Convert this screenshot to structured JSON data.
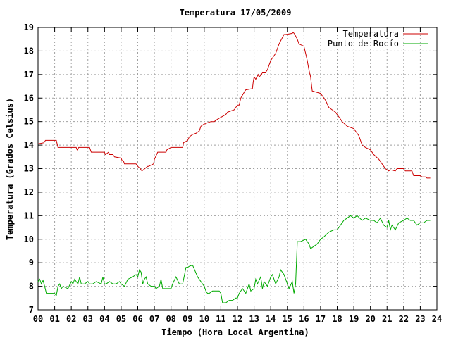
{
  "chart_data": {
    "type": "line",
    "title": "Temperatura 17/05/2009",
    "xlabel": "Tiempo (Hora Local Argentina)",
    "ylabel": "Temperatura (Grados Celsius)",
    "xlim": [
      0,
      24
    ],
    "ylim": [
      7,
      19
    ],
    "xticks": [
      "00",
      "01",
      "02",
      "03",
      "04",
      "05",
      "06",
      "07",
      "08",
      "09",
      "10",
      "11",
      "12",
      "13",
      "14",
      "15",
      "16",
      "17",
      "18",
      "19",
      "20",
      "21",
      "22",
      "23",
      "24"
    ],
    "yticks": [
      7,
      8,
      9,
      10,
      11,
      12,
      13,
      14,
      15,
      16,
      17,
      18,
      19
    ],
    "grid": true,
    "legend_position": "top-right",
    "series": [
      {
        "name": "Temperatura",
        "color": "#cc0000",
        "x": [
          0.0,
          0.35,
          0.45,
          1.1,
          1.2,
          2.3,
          2.35,
          2.45,
          3.1,
          3.2,
          3.7,
          4.0,
          4.05,
          4.25,
          4.3,
          4.5,
          4.6,
          5.0,
          5.05,
          5.15,
          5.2,
          5.9,
          6.0,
          6.15,
          6.25,
          6.6,
          6.65,
          6.95,
          7.0,
          7.2,
          7.3,
          7.7,
          7.75,
          8.0,
          8.1,
          8.7,
          8.75,
          9.0,
          9.1,
          9.3,
          9.5,
          9.7,
          9.8,
          10.0,
          10.05,
          10.2,
          10.4,
          10.6,
          10.8,
          11.3,
          11.4,
          11.6,
          11.8,
          11.9,
          12.0,
          12.1,
          12.2,
          12.45,
          12.5,
          12.9,
          12.95,
          13.0,
          13.1,
          13.25,
          13.3,
          13.45,
          13.5,
          13.6,
          13.7,
          13.8,
          14.0,
          14.3,
          14.5,
          14.8,
          14.9,
          15.3,
          15.35,
          15.45,
          15.6,
          15.7,
          16.0,
          16.1,
          16.2,
          16.3,
          16.4,
          16.45,
          16.5,
          17.0,
          17.1,
          17.3,
          17.5,
          17.7,
          17.9,
          18.1,
          18.3,
          18.6,
          18.8,
          19.0,
          19.1,
          19.3,
          19.5,
          19.7,
          20.0,
          20.2,
          20.5,
          20.7,
          20.9,
          21.0,
          21.1,
          21.2,
          21.5,
          21.6,
          22.0,
          22.1,
          22.5,
          22.6,
          23.0,
          23.1,
          23.35,
          23.4,
          23.6
        ],
        "values": [
          14.05,
          14.1,
          14.2,
          14.2,
          13.9,
          13.9,
          13.8,
          13.9,
          13.9,
          13.7,
          13.7,
          13.7,
          13.6,
          13.7,
          13.6,
          13.6,
          13.5,
          13.45,
          13.35,
          13.3,
          13.2,
          13.2,
          13.1,
          13.0,
          12.9,
          13.1,
          13.1,
          13.2,
          13.4,
          13.7,
          13.7,
          13.7,
          13.8,
          13.9,
          13.9,
          13.9,
          14.1,
          14.2,
          14.35,
          14.45,
          14.5,
          14.6,
          14.8,
          14.9,
          14.9,
          14.95,
          15.0,
          15.0,
          15.1,
          15.3,
          15.4,
          15.45,
          15.5,
          15.6,
          15.7,
          15.7,
          16.0,
          16.3,
          16.35,
          16.4,
          16.7,
          16.9,
          16.8,
          17.0,
          16.9,
          17.0,
          17.1,
          17.1,
          17.1,
          17.2,
          17.6,
          17.9,
          18.3,
          18.7,
          18.7,
          18.75,
          18.8,
          18.7,
          18.5,
          18.3,
          18.2,
          17.9,
          17.6,
          17.2,
          16.9,
          16.6,
          16.3,
          16.2,
          16.1,
          15.9,
          15.6,
          15.5,
          15.4,
          15.2,
          15.0,
          14.8,
          14.75,
          14.7,
          14.6,
          14.4,
          14.0,
          13.9,
          13.8,
          13.6,
          13.4,
          13.2,
          13.0,
          12.95,
          12.9,
          12.95,
          12.9,
          13.0,
          13.0,
          12.9,
          12.9,
          12.7,
          12.7,
          12.65,
          12.65,
          12.6,
          12.6
        ]
      },
      {
        "name": "Punto de Rocío",
        "color": "#00aa00",
        "x": [
          0.0,
          0.1,
          0.2,
          0.3,
          0.4,
          0.5,
          1.0,
          1.1,
          1.2,
          1.3,
          1.4,
          1.5,
          1.8,
          2.0,
          2.1,
          2.2,
          2.3,
          2.4,
          2.5,
          2.6,
          2.8,
          3.0,
          3.1,
          3.3,
          3.5,
          3.8,
          3.9,
          4.0,
          4.1,
          4.3,
          4.5,
          4.7,
          4.9,
          5.0,
          5.2,
          5.4,
          5.7,
          5.9,
          6.0,
          6.1,
          6.2,
          6.3,
          6.4,
          6.5,
          6.6,
          6.8,
          7.0,
          7.1,
          7.3,
          7.4,
          7.5,
          7.8,
          8.0,
          8.1,
          8.3,
          8.5,
          8.7,
          8.9,
          9.0,
          9.1,
          9.3,
          9.6,
          10.0,
          10.1,
          10.2,
          10.3,
          10.5,
          10.7,
          10.9,
          11.0,
          11.1,
          11.3,
          11.5,
          11.7,
          11.9,
          12.0,
          12.1,
          12.3,
          12.5,
          12.7,
          12.8,
          13.0,
          13.1,
          13.2,
          13.4,
          13.5,
          13.6,
          13.8,
          14.0,
          14.1,
          14.3,
          14.5,
          14.6,
          14.8,
          15.0,
          15.1,
          15.3,
          15.4,
          15.5,
          15.6,
          15.8,
          16.1,
          16.3,
          16.4,
          16.6,
          16.8,
          17.0,
          17.2,
          17.5,
          17.8,
          18.0,
          18.2,
          18.4,
          18.6,
          18.8,
          19.0,
          19.2,
          19.5,
          19.7,
          20.0,
          20.2,
          20.4,
          20.6,
          20.8,
          21.0,
          21.1,
          21.2,
          21.3,
          21.5,
          21.7,
          22.0,
          22.2,
          22.4,
          22.6,
          22.8,
          23.0,
          23.2,
          23.4,
          23.6
        ],
        "values": [
          8.2,
          8.3,
          8.1,
          8.25,
          8.0,
          7.7,
          7.7,
          7.6,
          8.0,
          8.1,
          7.9,
          8.0,
          7.9,
          8.2,
          8.1,
          8.3,
          8.2,
          8.1,
          8.4,
          8.1,
          8.1,
          8.2,
          8.1,
          8.1,
          8.2,
          8.1,
          8.4,
          8.1,
          8.1,
          8.2,
          8.1,
          8.1,
          8.2,
          8.1,
          8.0,
          8.3,
          8.4,
          8.5,
          8.4,
          8.7,
          8.6,
          8.1,
          8.3,
          8.4,
          8.1,
          8.0,
          8.0,
          7.9,
          8.0,
          8.3,
          7.9,
          7.9,
          7.9,
          8.1,
          8.4,
          8.1,
          8.1,
          8.8,
          8.8,
          8.85,
          8.9,
          8.4,
          8.0,
          7.8,
          7.7,
          7.7,
          7.8,
          7.8,
          7.8,
          7.7,
          7.3,
          7.3,
          7.4,
          7.4,
          7.5,
          7.5,
          7.7,
          7.9,
          7.7,
          8.1,
          7.8,
          7.9,
          8.3,
          8.1,
          8.4,
          7.9,
          8.2,
          8.0,
          8.4,
          8.5,
          8.1,
          8.4,
          8.7,
          8.5,
          8.1,
          7.9,
          8.2,
          7.7,
          8.1,
          9.9,
          9.9,
          10.0,
          9.8,
          9.6,
          9.7,
          9.8,
          10.0,
          10.1,
          10.3,
          10.4,
          10.4,
          10.6,
          10.8,
          10.9,
          11.0,
          10.9,
          11.0,
          10.8,
          10.9,
          10.8,
          10.8,
          10.7,
          10.9,
          10.6,
          10.5,
          10.8,
          10.4,
          10.6,
          10.4,
          10.7,
          10.8,
          10.9,
          10.8,
          10.8,
          10.6,
          10.7,
          10.7,
          10.8,
          10.8
        ]
      }
    ]
  }
}
